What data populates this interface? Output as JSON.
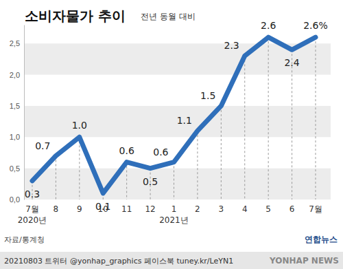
{
  "chart_data": {
    "type": "line",
    "title": "소비자물가 추이",
    "subtitle": "전년 동월 대비",
    "categories": [
      "7월\n2020년",
      "8",
      "9",
      "10",
      "11",
      "12",
      "1\n2021년",
      "2",
      "3",
      "4",
      "5",
      "6",
      "7월"
    ],
    "values": [
      0.3,
      0.7,
      1.0,
      0.1,
      0.6,
      0.5,
      0.6,
      1.1,
      1.5,
      2.3,
      2.6,
      2.4,
      2.6
    ],
    "value_labels": [
      "0.3",
      "0.7",
      "1.0",
      "0.1",
      "0.6",
      "0.5",
      "0.6",
      "1.1",
      "1.5",
      "2.3",
      "2.6",
      "2.4",
      "2.6%"
    ],
    "color": "#2f6fba",
    "ylim": [
      0,
      2.8
    ],
    "yticks": [
      {
        "value": 0,
        "label": "0,0"
      },
      {
        "value": 0.5,
        "label": "0,5"
      },
      {
        "value": 1.0,
        "label": "1,0"
      },
      {
        "value": 1.5,
        "label": "1,5"
      },
      {
        "value": 2.0,
        "label": "2,0"
      },
      {
        "value": 2.5,
        "label": "2,5"
      }
    ],
    "grid": true,
    "data_labels": true,
    "source": "자료/통계청",
    "footer": "20210803 트위터 @yonhap_graphics 페이스북 tuney.kr/LeYN1",
    "logo_text": "연합뉴스",
    "logo_subtext": "YONHAP NEWS"
  }
}
